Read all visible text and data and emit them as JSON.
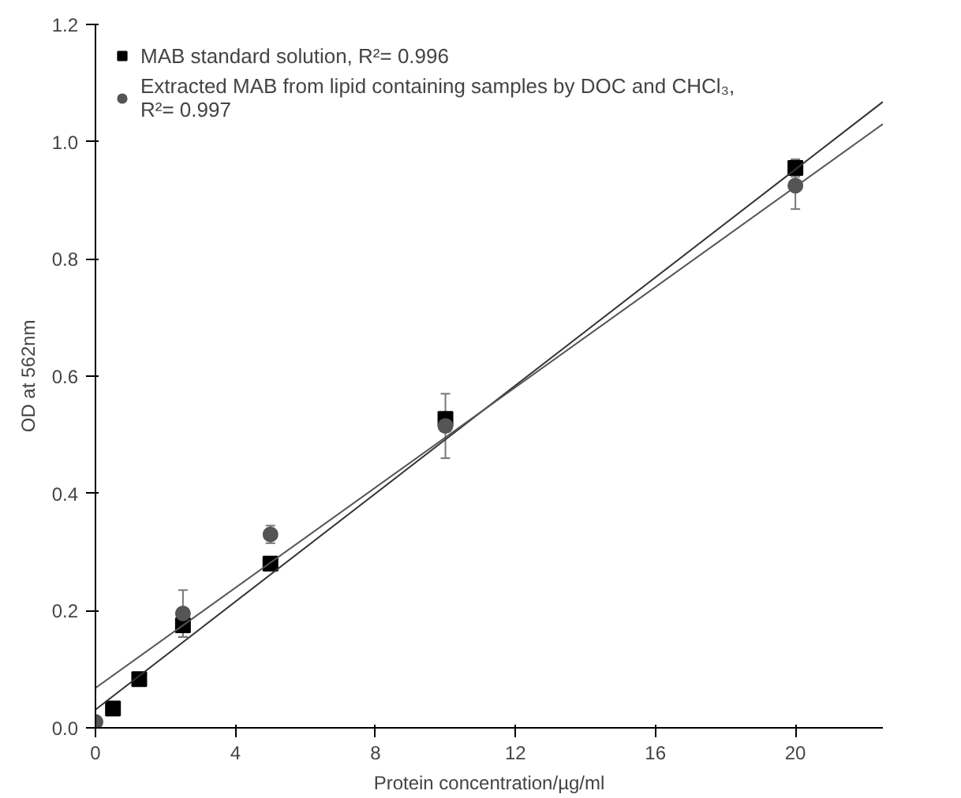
{
  "chart_data": {
    "type": "scatter",
    "xlabel": "Protein concentration/µg/ml",
    "ylabel": "OD at 562nm",
    "xlim": [
      0,
      22.5
    ],
    "ylim": [
      0,
      1.2
    ],
    "xticks": [
      0,
      4,
      8,
      12,
      16,
      20
    ],
    "yticks": [
      {
        "value": 0,
        "label": "0.0"
      },
      0.2,
      0.4,
      0.6,
      0.8,
      {
        "value": 1,
        "label": "1.0"
      },
      1.2
    ],
    "grid": false,
    "legend": "top left",
    "series": [
      {
        "name": "MAB standard solution, R²= 0.996",
        "color": "#000000",
        "marker": "square",
        "x": [
          0.5,
          1.25,
          2.5,
          5,
          10,
          20
        ],
        "values": [
          0.033,
          0.083,
          0.175,
          0.28,
          0.527,
          0.955
        ],
        "errors": [
          null,
          null,
          0.02,
          null,
          null,
          0.015
        ]
      },
      {
        "name": "Extracted MAB from lipid containing samples by DOC and CHCl₃,\nR²= 0.997",
        "color": "#555555",
        "marker": "circle",
        "x": [
          0,
          2.5,
          5,
          10,
          20
        ],
        "values": [
          0.01,
          0.195,
          0.33,
          0.515,
          0.925
        ],
        "errors": [
          null,
          0.04,
          0.015,
          0.055,
          0.04
        ]
      },
      {
        "type": "line",
        "color": "#333333",
        "x": [
          0,
          22.5
        ],
        "values": [
          0.031,
          1.068
        ]
      },
      {
        "type": "line",
        "color": "#555555",
        "x": [
          0,
          22.5
        ],
        "values": [
          0.068,
          1.03
        ]
      }
    ]
  }
}
